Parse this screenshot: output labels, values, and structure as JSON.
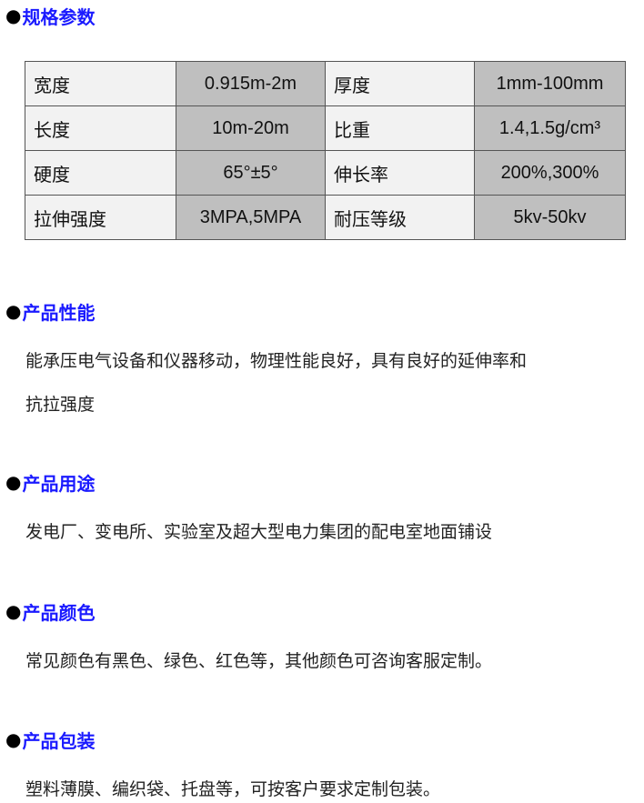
{
  "sections": [
    {
      "title": "规格参数"
    },
    {
      "title": "产品性能",
      "text": [
        "能承压电气设备和仪器移动，物理性能良好，具有良好的延伸率和",
        "抗拉强度"
      ]
    },
    {
      "title": "产品用途",
      "text": [
        "发电厂、变电所、实验室及超大型电力集团的配电室地面铺设"
      ]
    },
    {
      "title": "产品颜色",
      "text": [
        "常见颜色有黑色、绿色、红色等，其他颜色可咨询客服定制。"
      ]
    },
    {
      "title": "产品包装",
      "text": [
        "塑料薄膜、编织袋、托盘等，可按客户要求定制包装。"
      ]
    }
  ],
  "bullet": "●",
  "table": [
    [
      "宽度",
      "0.915m-2m",
      "厚度",
      "1mm-100mm"
    ],
    [
      "长度",
      "10m-20m",
      "比重",
      "1.4,1.5g/cm³"
    ],
    [
      "硬度",
      "65°±5°",
      "伸长率",
      "200%,300%"
    ],
    [
      "拉伸强度",
      "3MPA,5MPA",
      "耐压等级",
      "5kv-50kv"
    ]
  ],
  "colors": {
    "heading": "#1a1aff",
    "label_cell": "#f2f2f2",
    "value_cell": "#bfbfbf"
  }
}
